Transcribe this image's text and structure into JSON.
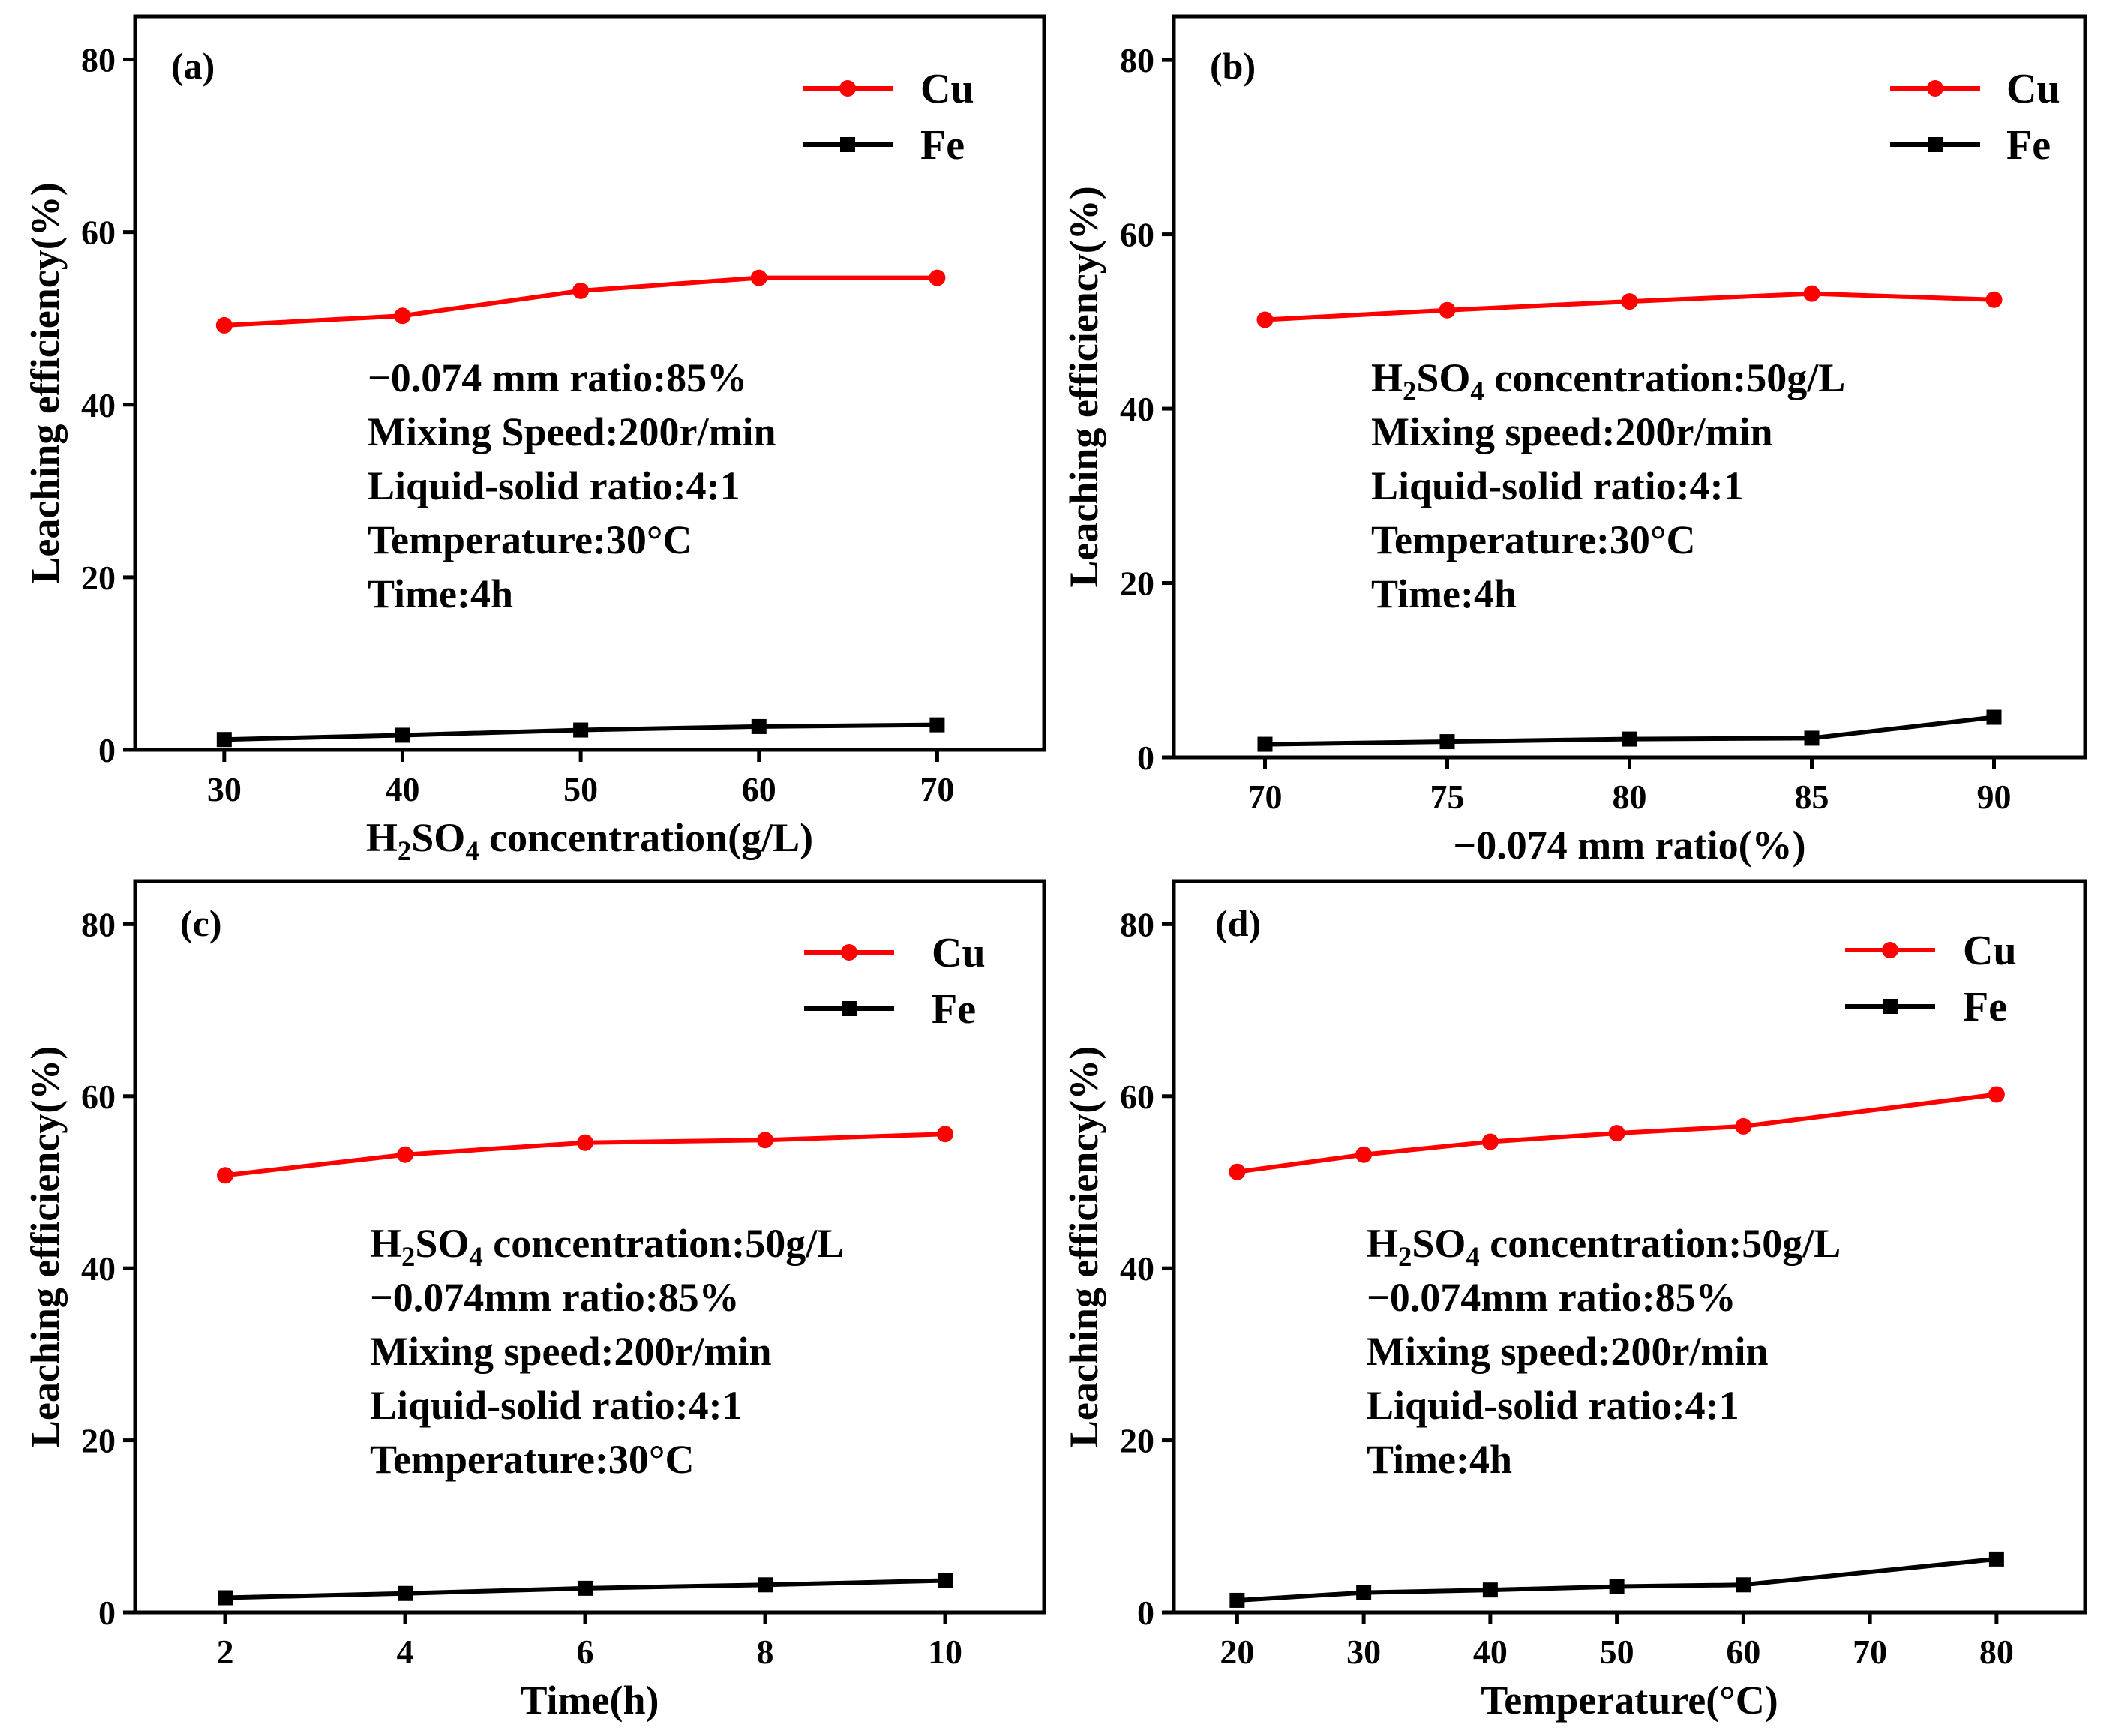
{
  "colors": {
    "cu": "#ff0000",
    "fe": "#000000",
    "axis": "#000000",
    "background": "#ffffff"
  },
  "chart_data": [
    {
      "panel": "(a)",
      "type": "line",
      "ylabel": "Leaching efficiency(%)",
      "xlabel_parts": [
        "H",
        "2",
        "SO",
        "4",
        " concentration(g/L)"
      ],
      "xlim": [
        25,
        76
      ],
      "ylim": [
        0,
        85
      ],
      "xticks": [
        30,
        40,
        50,
        60,
        70
      ],
      "yticks": [
        0,
        20,
        40,
        60,
        80
      ],
      "legend": [
        "Cu",
        "Fe"
      ],
      "legend_position": "top-right",
      "annotations": [
        "−0.074 mm ratio:85%",
        "Mixing Speed:200r/min",
        "Liquid-solid ratio:4:1",
        "Temperature:30°C",
        "Time:4h"
      ],
      "series": [
        {
          "name": "Cu",
          "marker": "circle",
          "x": [
            30,
            40,
            50,
            60,
            70
          ],
          "values": [
            49.2,
            50.3,
            53.2,
            54.7,
            54.7
          ]
        },
        {
          "name": "Fe",
          "marker": "square",
          "x": [
            30,
            40,
            50,
            60,
            70
          ],
          "values": [
            1.2,
            1.7,
            2.3,
            2.7,
            2.9
          ]
        }
      ]
    },
    {
      "panel": "(b)",
      "type": "line",
      "ylabel": "Leaching efficiency(%)",
      "xlabel": "−0.074 mm ratio(%)",
      "xlim": [
        67.5,
        92.5
      ],
      "ylim": [
        0,
        85
      ],
      "xticks": [
        70,
        75,
        80,
        85,
        90
      ],
      "yticks": [
        0,
        20,
        40,
        60,
        80
      ],
      "legend": [
        "Cu",
        "Fe"
      ],
      "legend_position": "top-right",
      "annotations": [
        [
          "H",
          "2",
          "SO",
          "4",
          " concentration:50g/L"
        ],
        "Mixing speed:200r/min",
        "Liquid-solid ratio:4:1",
        "Temperature:30°C",
        "Time:4h"
      ],
      "series": [
        {
          "name": "Cu",
          "marker": "circle",
          "x": [
            70,
            75,
            80,
            85,
            90
          ],
          "values": [
            50.2,
            51.3,
            52.3,
            53.2,
            52.5
          ]
        },
        {
          "name": "Fe",
          "marker": "square",
          "x": [
            70,
            75,
            80,
            85,
            90
          ],
          "values": [
            1.5,
            1.8,
            2.1,
            2.2,
            4.6
          ]
        }
      ]
    },
    {
      "panel": "(c)",
      "type": "line",
      "ylabel": "Leaching efficiency(%)",
      "xlabel": "Time(h)",
      "xlim": [
        1,
        11.1
      ],
      "ylim": [
        0,
        85
      ],
      "xticks": [
        2,
        4,
        6,
        8,
        10
      ],
      "yticks": [
        0,
        20,
        40,
        60,
        80
      ],
      "legend": [
        "Cu",
        "Fe"
      ],
      "legend_position": "top-right",
      "annotations": [
        [
          "H",
          "2",
          "SO",
          "4",
          " concentration:50g/L"
        ],
        "−0.074mm ratio:85%",
        "Mixing speed:200r/min",
        "Liquid-solid ratio:4:1",
        "Temperature:30°C"
      ],
      "series": [
        {
          "name": "Cu",
          "marker": "circle",
          "x": [
            2,
            4,
            6,
            8,
            10
          ],
          "values": [
            50.8,
            53.2,
            54.6,
            54.9,
            55.6
          ]
        },
        {
          "name": "Fe",
          "marker": "square",
          "x": [
            2,
            4,
            6,
            8,
            10
          ],
          "values": [
            1.7,
            2.2,
            2.8,
            3.2,
            3.7
          ]
        }
      ]
    },
    {
      "panel": "(d)",
      "type": "line",
      "ylabel": "Leaching efficiency(%)",
      "xlabel": "Temperature(°C)",
      "xlim": [
        15,
        87
      ],
      "ylim": [
        0,
        85
      ],
      "xticks": [
        20,
        30,
        40,
        50,
        60,
        70,
        80
      ],
      "yticks": [
        0,
        20,
        40,
        60,
        80
      ],
      "legend": [
        "Cu",
        "Fe"
      ],
      "legend_position": "top-right",
      "annotations": [
        [
          "H",
          "2",
          "SO",
          "4",
          " concentration:50g/L"
        ],
        "−0.074mm ratio:85%",
        "Mixing speed:200r/min",
        "Liquid-solid ratio:4:1",
        "Time:4h"
      ],
      "series": [
        {
          "name": "Cu",
          "marker": "circle",
          "x": [
            20,
            30,
            40,
            50,
            60,
            80
          ],
          "values": [
            51.2,
            53.2,
            54.7,
            55.7,
            56.5,
            60.2
          ]
        },
        {
          "name": "Fe",
          "marker": "square",
          "x": [
            20,
            30,
            40,
            50,
            60,
            80
          ],
          "values": [
            1.4,
            2.3,
            2.6,
            3.0,
            3.2,
            6.2
          ]
        }
      ]
    }
  ]
}
